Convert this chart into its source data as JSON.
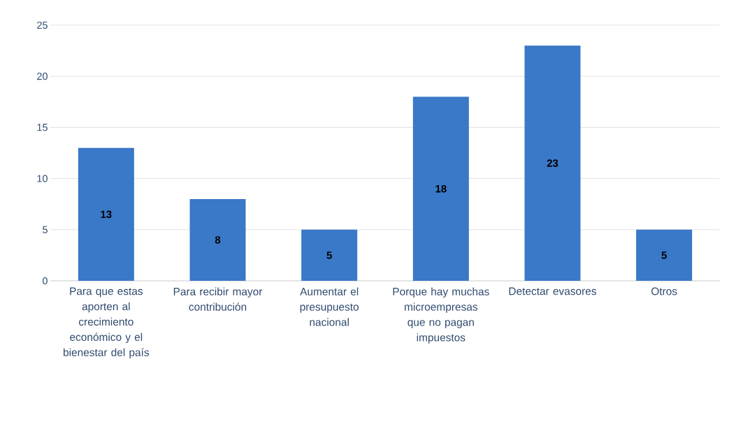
{
  "chart_data": {
    "type": "bar",
    "categories": [
      "Para que estas aporten al crecimiento económico y el bienestar del país",
      "Para recibir mayor contribución",
      "Aumentar el presupuesto nacional",
      "Porque hay muchas microempresas que no pagan impuestos",
      "Detectar evasores",
      "Otros"
    ],
    "values": [
      13,
      8,
      5,
      18,
      23,
      5
    ],
    "color": "#3a78c8",
    "ylim": [
      0,
      25
    ],
    "yticks": [
      0,
      5,
      10,
      15,
      20,
      25
    ],
    "grid": "y",
    "data_labels": true
  }
}
